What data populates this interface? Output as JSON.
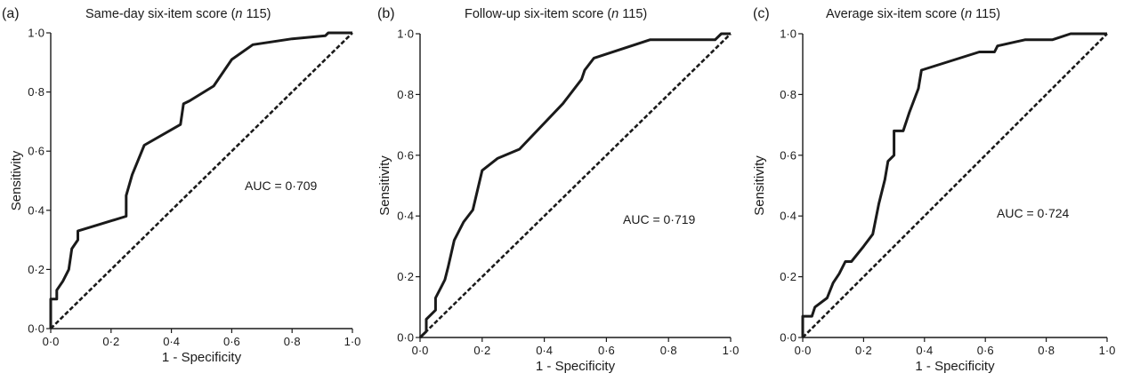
{
  "figure": {
    "panels": [
      {
        "label": "(a)",
        "title_main": "Same-day six-item score (",
        "title_italic": "n",
        "title_tail": " 115)",
        "auc_text": "AUC = 0·709"
      },
      {
        "label": "(b)",
        "title_main": "Follow-up six-item score (",
        "title_italic": "n",
        "title_tail": " 115)",
        "auc_text": "AUC = 0·719"
      },
      {
        "label": "(c)",
        "title_main": "Average six-item score (",
        "title_italic": "n",
        "title_tail": " 115)",
        "auc_text": "AUC = 0·724"
      }
    ]
  },
  "chart_data": [
    {
      "type": "line",
      "title": "Same-day six-item score (n 115)",
      "xlabel": "1 - Specificity",
      "ylabel": "Sensitivity",
      "xlim": [
        0,
        1
      ],
      "ylim": [
        0,
        1
      ],
      "x_ticks": [
        "0·0",
        "0·2",
        "0·4",
        "0·6",
        "0·8",
        "1·0"
      ],
      "y_ticks": [
        "0·0",
        "0·2",
        "0·4",
        "0·6",
        "0·8",
        "1·0"
      ],
      "annotation": "AUC = 0·709",
      "auc": 0.709,
      "grid": false,
      "series": [
        {
          "style": "solid",
          "x": [
            0,
            0,
            0.02,
            0.02,
            0.04,
            0.06,
            0.07,
            0.09,
            0.09,
            0.25,
            0.25,
            0.27,
            0.29,
            0.31,
            0.43,
            0.44,
            0.46,
            0.54,
            0.6,
            0.67,
            0.8,
            0.91,
            0.92,
            0.98,
            1.0
          ],
          "y": [
            0,
            0.1,
            0.1,
            0.13,
            0.16,
            0.2,
            0.27,
            0.3,
            0.33,
            0.38,
            0.45,
            0.52,
            0.57,
            0.62,
            0.69,
            0.76,
            0.77,
            0.82,
            0.91,
            0.96,
            0.98,
            0.99,
            1.0,
            1.0,
            1.0
          ]
        },
        {
          "style": "dashed",
          "x": [
            0,
            1
          ],
          "y": [
            0,
            1
          ]
        }
      ]
    },
    {
      "type": "line",
      "title": "Follow-up six-item score (n 115)",
      "xlabel": "1 - Specificity",
      "ylabel": "Sensitivity",
      "xlim": [
        0,
        1
      ],
      "ylim": [
        0,
        1
      ],
      "x_ticks": [
        "0·0",
        "0·2",
        "0·4",
        "0·6",
        "0·8",
        "1·0"
      ],
      "y_ticks": [
        "0·0",
        "0·2",
        "0·4",
        "0·6",
        "0·8",
        "1·0"
      ],
      "annotation": "AUC = 0·719",
      "auc": 0.719,
      "grid": false,
      "series": [
        {
          "style": "solid",
          "x": [
            0,
            0.02,
            0.02,
            0.04,
            0.05,
            0.05,
            0.07,
            0.08,
            0.09,
            0.11,
            0.14,
            0.17,
            0.2,
            0.25,
            0.32,
            0.46,
            0.52,
            0.53,
            0.56,
            0.74,
            0.95,
            0.97,
            1.0
          ],
          "y": [
            0,
            0.02,
            0.06,
            0.08,
            0.09,
            0.13,
            0.17,
            0.19,
            0.23,
            0.32,
            0.38,
            0.42,
            0.55,
            0.59,
            0.62,
            0.77,
            0.85,
            0.88,
            0.92,
            0.98,
            0.98,
            1.0,
            1.0
          ]
        },
        {
          "style": "dashed",
          "x": [
            0,
            1
          ],
          "y": [
            0,
            1
          ]
        }
      ]
    },
    {
      "type": "line",
      "title": "Average six-item score (n 115)",
      "xlabel": "1 - Specificity",
      "ylabel": "Sensitivity",
      "xlim": [
        0,
        1
      ],
      "ylim": [
        0,
        1
      ],
      "x_ticks": [
        "0·0",
        "0·2",
        "0·4",
        "0·6",
        "0·8",
        "1·0"
      ],
      "y_ticks": [
        "0·0",
        "0·2",
        "0·4",
        "0·6",
        "0·8",
        "1·0"
      ],
      "annotation": "AUC = 0·724",
      "auc": 0.724,
      "grid": false,
      "series": [
        {
          "style": "solid",
          "x": [
            0,
            0,
            0.03,
            0.04,
            0.08,
            0.1,
            0.12,
            0.14,
            0.16,
            0.2,
            0.23,
            0.25,
            0.27,
            0.28,
            0.3,
            0.3,
            0.33,
            0.35,
            0.38,
            0.39,
            0.58,
            0.63,
            0.64,
            0.73,
            0.82,
            0.88,
            1.0
          ],
          "y": [
            0,
            0.07,
            0.07,
            0.1,
            0.13,
            0.18,
            0.21,
            0.25,
            0.25,
            0.3,
            0.34,
            0.44,
            0.52,
            0.58,
            0.6,
            0.68,
            0.68,
            0.74,
            0.82,
            0.88,
            0.94,
            0.94,
            0.96,
            0.98,
            0.98,
            1.0,
            1.0
          ]
        },
        {
          "style": "dashed",
          "x": [
            0,
            1
          ],
          "y": [
            0,
            1
          ]
        }
      ]
    }
  ]
}
